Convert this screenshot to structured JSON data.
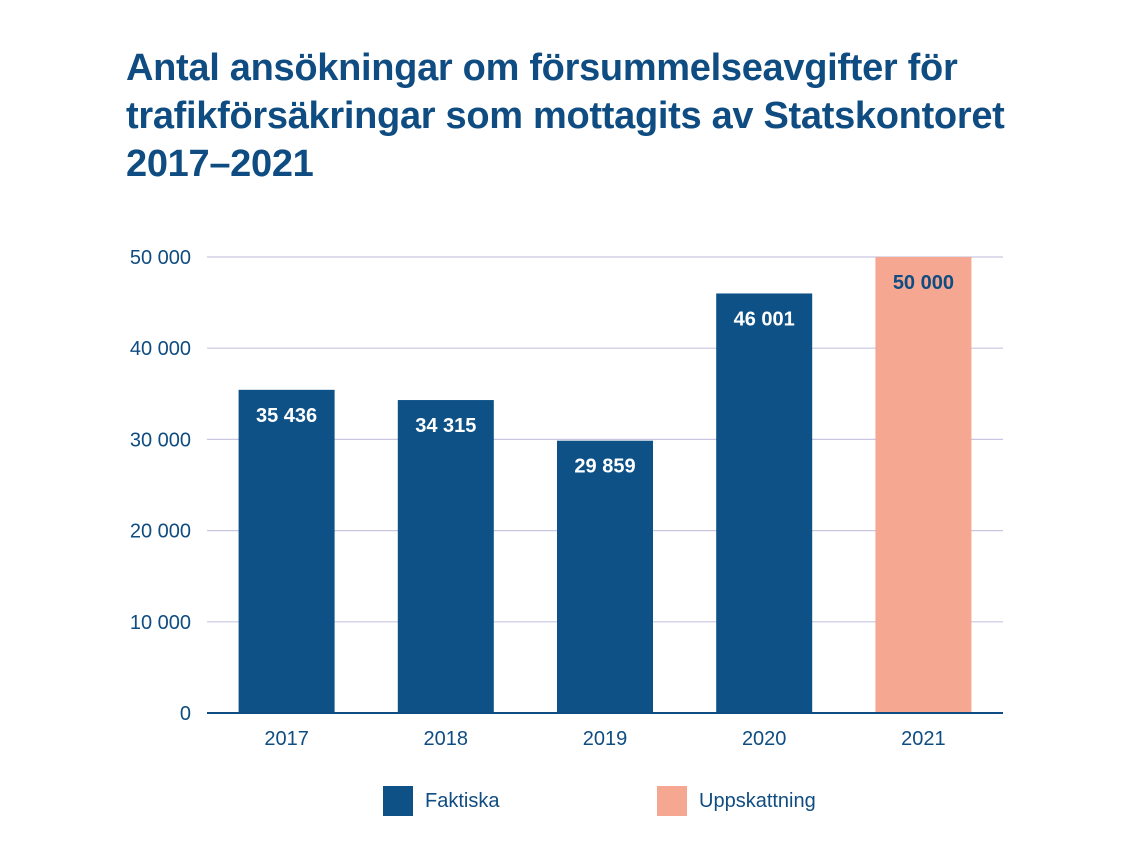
{
  "title_lines": [
    "Antal ansökningar om försummelseavgifter för",
    "trafikförsäkringar som mottagits av Statskontoret",
    "2017–2021"
  ],
  "colors": {
    "text": "#0f4c81",
    "faktiska": "#0d5186",
    "uppskattning": "#f5a792",
    "grid": "#c9c6e2",
    "axis": "#0f4c81"
  },
  "chart_data": {
    "type": "bar",
    "title": "Antal ansökningar om försummelseavgifter för trafikförsäkringar som mottagits av Statskontoret 2017–2021",
    "categories": [
      "2017",
      "2018",
      "2019",
      "2020",
      "2021"
    ],
    "values": [
      35436,
      34315,
      29859,
      46001,
      50000
    ],
    "value_labels": [
      "35 436",
      "34 315",
      "29 859",
      "46 001",
      "50 000"
    ],
    "bar_series": [
      "Faktiska",
      "Faktiska",
      "Faktiska",
      "Faktiska",
      "Uppskattning"
    ],
    "yticks": [
      0,
      10000,
      20000,
      30000,
      40000,
      50000
    ],
    "ytick_labels": [
      "0",
      "10 000",
      "20 000",
      "30 000",
      "40 000",
      "50 000"
    ],
    "ylim": [
      0,
      50000
    ],
    "grid": true,
    "legend_position": "bottom",
    "legend": [
      {
        "name": "Faktiska",
        "color": "#0d5186"
      },
      {
        "name": "Uppskattning",
        "color": "#f5a792"
      }
    ]
  }
}
